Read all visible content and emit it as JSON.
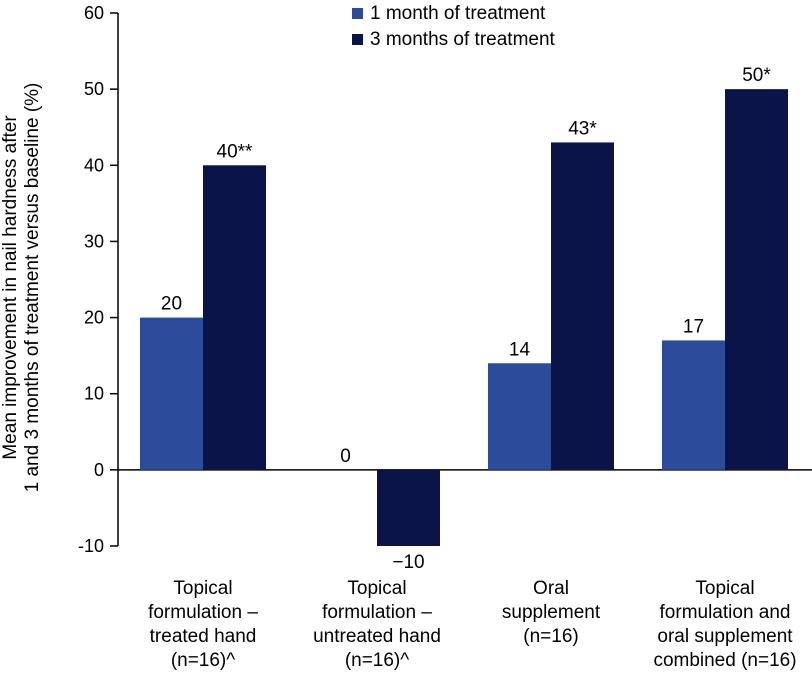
{
  "chart_data": {
    "type": "bar",
    "title": "",
    "xlabel": "",
    "ylabel": [
      "Mean improvement in nail hardness after",
      "1 and 3 months of treatment versus baseline (%)"
    ],
    "ylim": [
      -10,
      60
    ],
    "yticks": [
      60,
      50,
      40,
      30,
      20,
      10,
      0,
      -10
    ],
    "ytick_labels": [
      "60",
      "50",
      "40",
      "30",
      "20",
      "10",
      "0",
      "-10"
    ],
    "categories": [
      [
        "Topical",
        "formulation –",
        "treated hand",
        "(n=16)^"
      ],
      [
        "Topical",
        "formulation –",
        "untreated hand",
        "(n=16)^"
      ],
      [
        "Oral",
        "supplement",
        "(n=16)"
      ],
      [
        "Topical",
        "formulation and",
        "oral supplement",
        "combined (n=16)"
      ]
    ],
    "series": [
      {
        "name": "1 month of treatment",
        "color": "#2b4c9b",
        "values": [
          20,
          0,
          14,
          17
        ],
        "labels": [
          "20",
          "0",
          "14",
          "17"
        ]
      },
      {
        "name": "3 months of treatment",
        "color": "#0b1448",
        "values": [
          40,
          -10,
          43,
          50
        ],
        "labels": [
          "40**",
          "−10",
          "43*",
          "50*"
        ]
      }
    ],
    "legend_position": "top-center",
    "grid": false
  }
}
